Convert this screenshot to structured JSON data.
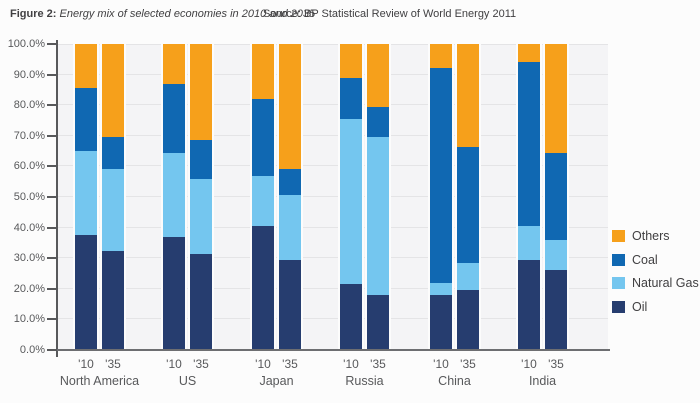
{
  "header": {
    "figure_label": "Figure 2:",
    "figure_title": "Energy mix of selected economies in 2010 and 2035",
    "source_label": "Source:",
    "source_title": "BP Statistical Review of World Energy 2011"
  },
  "chart_data": {
    "type": "bar",
    "variant": "stacked-100-percent",
    "title": "Energy mix of selected economies in 2010 and 2035",
    "unit": "percent",
    "grid": true,
    "legend_position": "right",
    "y_axis": {
      "min": 0,
      "max": 100,
      "tick_step": 10,
      "tick_labels": [
        "100.0%",
        "90.0%",
        "80.0%",
        "70.0%",
        "60.0%",
        "50.0%",
        "40.0%",
        "30.0%",
        "20.0%",
        "10.0%",
        "0.0%"
      ]
    },
    "bar_year_labels": [
      "'10",
      "'35"
    ],
    "stack_order_bottom_to_top": [
      "Oil",
      "Natural Gas",
      "Coal",
      "Others"
    ],
    "series_colors": {
      "Oil": "#263D6F",
      "Natural Gas": "#74C6EF",
      "Coal": "#1068B2",
      "Others": "#F6A01B"
    },
    "groups": [
      {
        "name": "North America",
        "bars": [
          {
            "year": "'10",
            "Oil": 37.5,
            "Natural Gas": 27.5,
            "Coal": 20.5,
            "Others": 14.5
          },
          {
            "year": "'35",
            "Oil": 32.5,
            "Natural Gas": 26.5,
            "Coal": 10.5,
            "Others": 30.5
          }
        ]
      },
      {
        "name": "US",
        "bars": [
          {
            "year": "'10",
            "Oil": 37,
            "Natural Gas": 27.5,
            "Coal": 22.5,
            "Others": 13
          },
          {
            "year": "'35",
            "Oil": 31.5,
            "Natural Gas": 24.5,
            "Coal": 12.5,
            "Others": 31.5
          }
        ]
      },
      {
        "name": "Japan",
        "bars": [
          {
            "year": "'10",
            "Oil": 40.5,
            "Natural Gas": 16.5,
            "Coal": 25,
            "Others": 18
          },
          {
            "year": "'35",
            "Oil": 29.5,
            "Natural Gas": 21,
            "Coal": 8.5,
            "Others": 41
          }
        ]
      },
      {
        "name": "Russia",
        "bars": [
          {
            "year": "'10",
            "Oil": 21.5,
            "Natural Gas": 54,
            "Coal": 13.5,
            "Others": 11
          },
          {
            "year": "'35",
            "Oil": 18,
            "Natural Gas": 51.5,
            "Coal": 10,
            "Others": 20.5
          }
        ]
      },
      {
        "name": "China",
        "bars": [
          {
            "year": "'10",
            "Oil": 18,
            "Natural Gas": 4,
            "Coal": 70,
            "Others": 8
          },
          {
            "year": "'35",
            "Oil": 19.5,
            "Natural Gas": 9,
            "Coal": 38,
            "Others": 33.5
          }
        ]
      },
      {
        "name": "India",
        "bars": [
          {
            "year": "'10",
            "Oil": 29.5,
            "Natural Gas": 11,
            "Coal": 53.5,
            "Others": 6
          },
          {
            "year": "'35",
            "Oil": 26,
            "Natural Gas": 10,
            "Coal": 28.5,
            "Others": 35.5
          }
        ]
      }
    ],
    "legend": [
      {
        "label": "Others",
        "color": "#F6A01B"
      },
      {
        "label": "Coal",
        "color": "#1068B2"
      },
      {
        "label": "Natural Gas",
        "color": "#74C6EF"
      },
      {
        "label": "Oil",
        "color": "#263D6F"
      }
    ]
  }
}
